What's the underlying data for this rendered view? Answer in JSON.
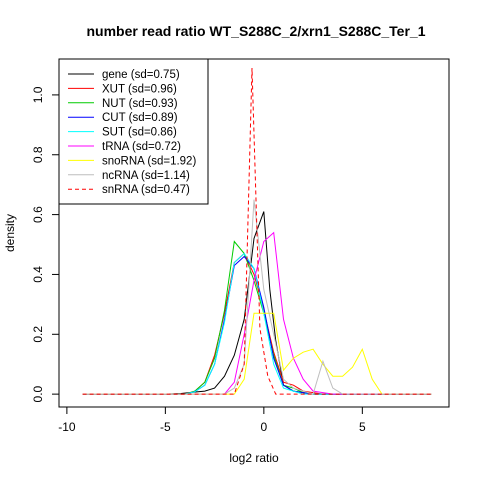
{
  "chart_data": {
    "type": "line",
    "title": "number read ratio WT_S288C_2/xrn1_S288C_Ter_1",
    "xlabel": "log2 ratio",
    "ylabel": "density",
    "xlim": [
      -10.4,
      9.4
    ],
    "ylim": [
      -0.043,
      1.12
    ],
    "x_ticks": [
      -10,
      -5,
      0,
      5
    ],
    "y_ticks": [
      0.0,
      0.2,
      0.4,
      0.6,
      0.8,
      1.0
    ],
    "legend_position": "top-left",
    "grid": false,
    "series": [
      {
        "name": "gene (sd=0.75)",
        "color": "#000000",
        "dash": "solid",
        "points": [
          [
            -9.2,
            0
          ],
          [
            -5,
            0
          ],
          [
            -4.2,
            0.002
          ],
          [
            -3.6,
            0.006
          ],
          [
            -3.0,
            0.01
          ],
          [
            -2.5,
            0.02
          ],
          [
            -2.0,
            0.06
          ],
          [
            -1.5,
            0.13
          ],
          [
            -1.0,
            0.25
          ],
          [
            -0.5,
            0.52
          ],
          [
            0,
            0.61
          ],
          [
            0.3,
            0.35
          ],
          [
            0.6,
            0.18
          ],
          [
            1.0,
            0.03
          ],
          [
            1.5,
            0.01
          ],
          [
            2.0,
            0.005
          ],
          [
            2.5,
            0.0
          ],
          [
            8.5,
            0
          ]
        ]
      },
      {
        "name": "XUT (sd=0.96)",
        "color": "#ff0000",
        "dash": "solid",
        "points": [
          [
            -9.2,
            0
          ],
          [
            -4,
            0
          ],
          [
            -3.5,
            0.01
          ],
          [
            -3.0,
            0.04
          ],
          [
            -2.5,
            0.13
          ],
          [
            -2.0,
            0.27
          ],
          [
            -1.5,
            0.44
          ],
          [
            -1.0,
            0.47
          ],
          [
            -0.5,
            0.4
          ],
          [
            0,
            0.28
          ],
          [
            0.5,
            0.14
          ],
          [
            1.0,
            0.04
          ],
          [
            1.5,
            0.03
          ],
          [
            2.0,
            0.01
          ],
          [
            2.5,
            0.005
          ],
          [
            3.0,
            0.0
          ],
          [
            8.5,
            0
          ]
        ]
      },
      {
        "name": "NUT (sd=0.93)",
        "color": "#00cc00",
        "dash": "solid",
        "points": [
          [
            -9.2,
            0
          ],
          [
            -4,
            0
          ],
          [
            -3.5,
            0.01
          ],
          [
            -3.0,
            0.04
          ],
          [
            -2.5,
            0.12
          ],
          [
            -2.0,
            0.28
          ],
          [
            -1.5,
            0.51
          ],
          [
            -1.0,
            0.47
          ],
          [
            -0.5,
            0.38
          ],
          [
            0,
            0.27
          ],
          [
            0.5,
            0.13
          ],
          [
            1.0,
            0.03
          ],
          [
            1.5,
            0.02
          ],
          [
            2.0,
            0.005
          ],
          [
            2.5,
            0.0
          ],
          [
            8.5,
            0
          ]
        ]
      },
      {
        "name": "CUT (sd=0.89)",
        "color": "#0000ff",
        "dash": "solid",
        "points": [
          [
            -9.2,
            0
          ],
          [
            -4,
            0
          ],
          [
            -3.5,
            0.008
          ],
          [
            -3.0,
            0.03
          ],
          [
            -2.5,
            0.1
          ],
          [
            -2.0,
            0.25
          ],
          [
            -1.5,
            0.43
          ],
          [
            -1.0,
            0.46
          ],
          [
            -0.5,
            0.42
          ],
          [
            0,
            0.29
          ],
          [
            0.5,
            0.12
          ],
          [
            1.0,
            0.03
          ],
          [
            1.5,
            0.01
          ],
          [
            2.0,
            0.005
          ],
          [
            2.5,
            0.0
          ],
          [
            8.5,
            0
          ]
        ]
      },
      {
        "name": "SUT (sd=0.86)",
        "color": "#00ffff",
        "dash": "solid",
        "points": [
          [
            -9.2,
            0
          ],
          [
            -4,
            0
          ],
          [
            -3.5,
            0.008
          ],
          [
            -3.0,
            0.03
          ],
          [
            -2.5,
            0.1
          ],
          [
            -2.0,
            0.24
          ],
          [
            -1.5,
            0.44
          ],
          [
            -1.0,
            0.47
          ],
          [
            -0.5,
            0.42
          ],
          [
            0,
            0.27
          ],
          [
            0.5,
            0.1
          ],
          [
            1.0,
            0.02
          ],
          [
            1.5,
            0.01
          ],
          [
            2.0,
            0.0
          ],
          [
            8.5,
            0
          ]
        ]
      },
      {
        "name": "tRNA (sd=0.72)",
        "color": "#ff00ff",
        "dash": "solid",
        "points": [
          [
            -9.2,
            0
          ],
          [
            -2,
            0
          ],
          [
            -1.5,
            0.04
          ],
          [
            -1.0,
            0.2
          ],
          [
            -0.5,
            0.38
          ],
          [
            0,
            0.51
          ],
          [
            0.5,
            0.54
          ],
          [
            1.0,
            0.25
          ],
          [
            1.5,
            0.12
          ],
          [
            2.0,
            0.05
          ],
          [
            2.5,
            0.01
          ],
          [
            3.0,
            0.005
          ],
          [
            3.5,
            0.0
          ],
          [
            8.5,
            0
          ]
        ]
      },
      {
        "name": "snoRNA (sd=1.92)",
        "color": "#ffff00",
        "dash": "solid",
        "points": [
          [
            -9.2,
            0
          ],
          [
            -1.5,
            0
          ],
          [
            -1.0,
            0.05
          ],
          [
            -0.5,
            0.27
          ],
          [
            0,
            0.27
          ],
          [
            0.5,
            0.27
          ],
          [
            1.0,
            0.08
          ],
          [
            1.5,
            0.12
          ],
          [
            2.0,
            0.14
          ],
          [
            2.5,
            0.15
          ],
          [
            3.0,
            0.1
          ],
          [
            3.5,
            0.06
          ],
          [
            4.0,
            0.06
          ],
          [
            4.5,
            0.09
          ],
          [
            5.0,
            0.15
          ],
          [
            5.5,
            0.05
          ],
          [
            6.0,
            0.0
          ],
          [
            8.5,
            0
          ]
        ]
      },
      {
        "name": "ncRNA (sd=1.14)",
        "color": "#bebebe",
        "dash": "solid",
        "points": [
          [
            -9.2,
            0
          ],
          [
            -2,
            0
          ],
          [
            -1.5,
            0.02
          ],
          [
            -1.0,
            0.1
          ],
          [
            -0.5,
            0.65
          ],
          [
            0,
            0.35
          ],
          [
            0.5,
            0.2
          ],
          [
            1.0,
            0.05
          ],
          [
            1.5,
            0.02
          ],
          [
            2.0,
            0.01
          ],
          [
            2.5,
            0.0
          ],
          [
            3.0,
            0.11
          ],
          [
            3.5,
            0.02
          ],
          [
            4.0,
            0.0
          ],
          [
            8.5,
            0
          ]
        ]
      },
      {
        "name": "snRNA (sd=0.47)",
        "color": "#ff0000",
        "dash": "dashed",
        "points": [
          [
            -9.2,
            0
          ],
          [
            -1.5,
            0
          ],
          [
            -1.0,
            0.1
          ],
          [
            -0.6,
            1.09
          ],
          [
            -0.2,
            0.22
          ],
          [
            0.2,
            0.06
          ],
          [
            0.6,
            0.0
          ],
          [
            8.5,
            0
          ]
        ]
      }
    ]
  }
}
